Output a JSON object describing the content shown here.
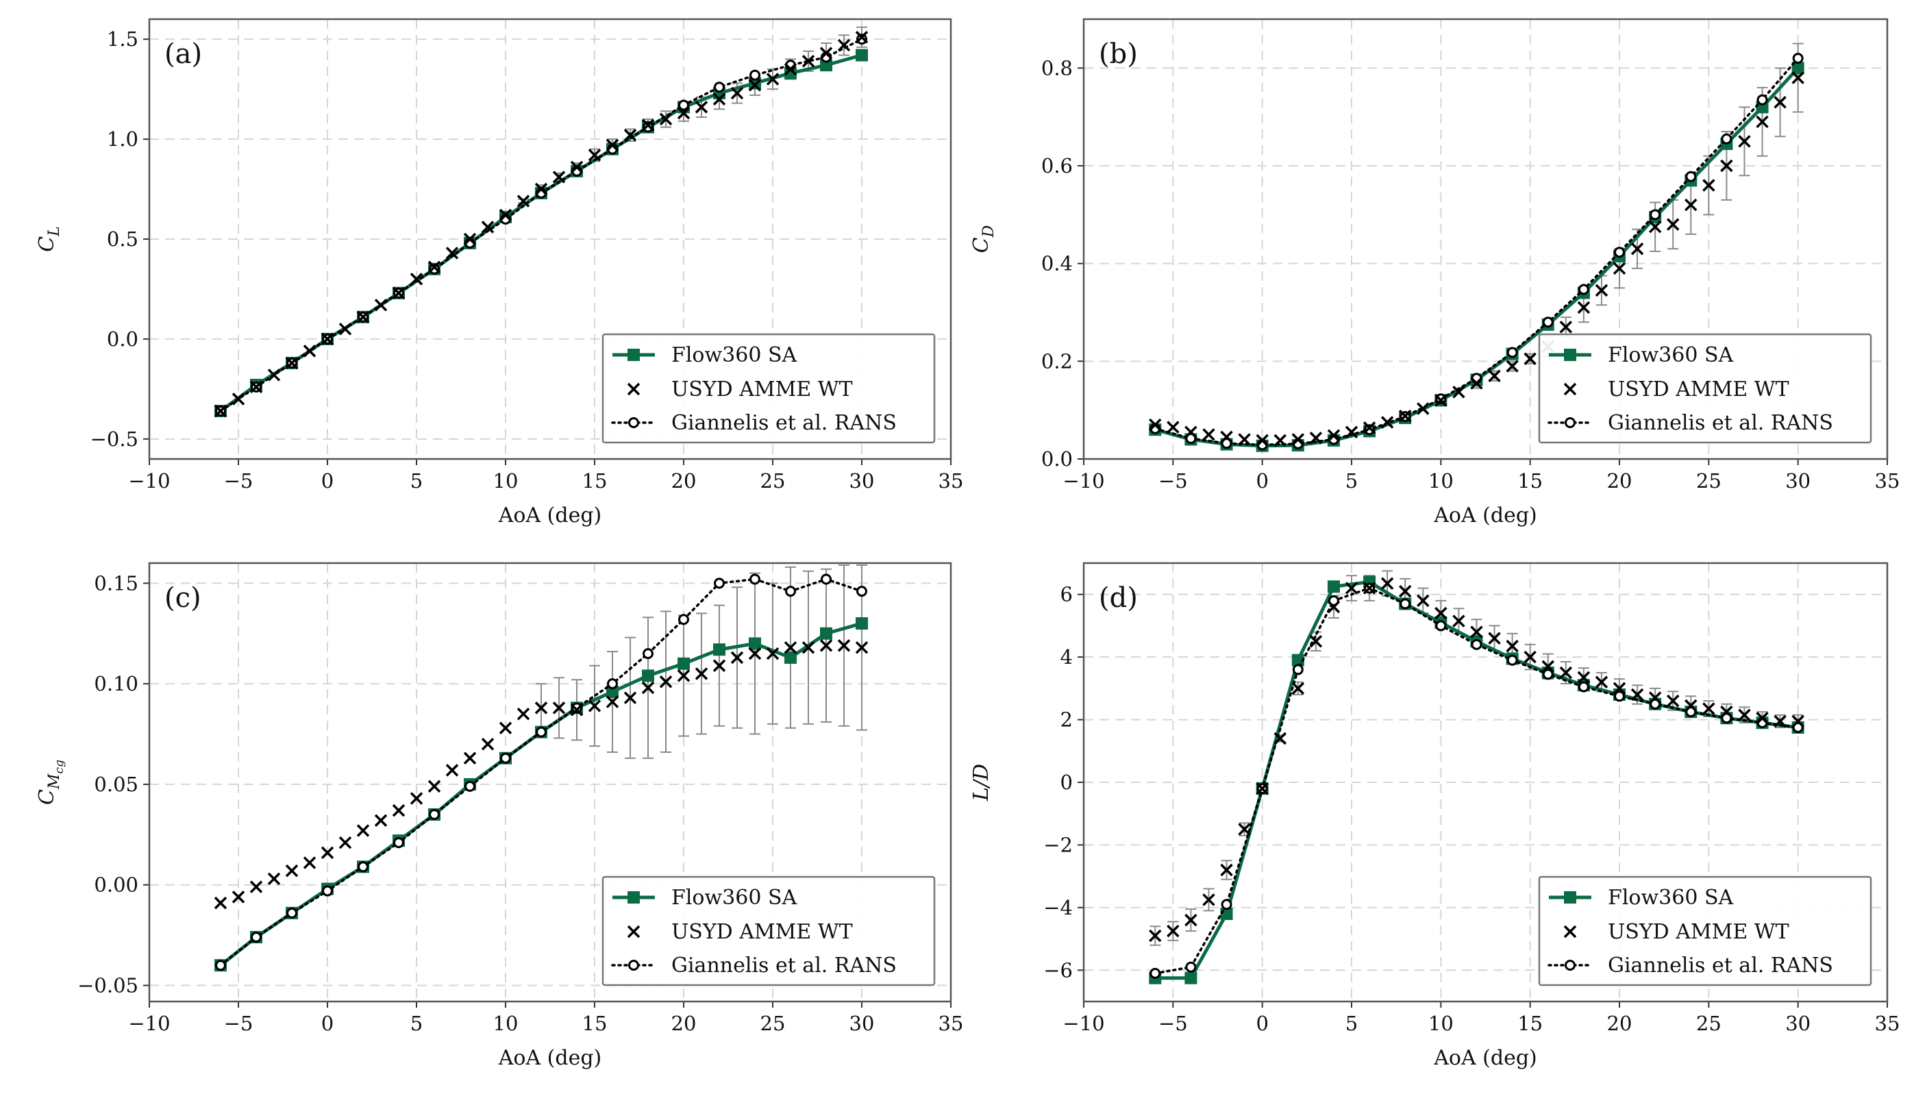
{
  "colors": {
    "flow360": "#0b6b45",
    "usyd": "#000000",
    "rans": "#000000",
    "errorbar": "#8a8a8a",
    "grid": "#d6d6d6"
  },
  "legend": [
    "Flow360 SA",
    "USYD AMME WT",
    "Giannelis et al. RANS"
  ],
  "chart_data": [
    {
      "type": "line",
      "panel_label": "(a)",
      "xlabel": "AoA (deg)",
      "ylabel": "C_L",
      "ylabel_parts": [
        "C",
        "L"
      ],
      "xlim": [
        -10,
        35
      ],
      "ylim": [
        -0.6,
        1.6
      ],
      "xticks": [
        -10,
        -5,
        0,
        5,
        10,
        15,
        20,
        25,
        30,
        35
      ],
      "xtick_labels": [
        "−10",
        "−5",
        "0",
        "5",
        "10",
        "15",
        "20",
        "25",
        "30",
        "35"
      ],
      "yticks": [
        -0.5,
        0.0,
        0.5,
        1.0,
        1.5
      ],
      "ytick_labels": [
        "−0.5",
        "0.0",
        "0.5",
        "1.0",
        "1.5"
      ],
      "legend_position": "bottom-right",
      "series": [
        {
          "name": "Flow360 SA",
          "marker": "square",
          "line": "solid",
          "x": [
            -6,
            -4,
            -2,
            0,
            2,
            4,
            6,
            8,
            10,
            12,
            14,
            16,
            18,
            20,
            22,
            24,
            26,
            28,
            30
          ],
          "y": [
            -0.36,
            -0.23,
            -0.12,
            0.0,
            0.11,
            0.23,
            0.35,
            0.48,
            0.61,
            0.73,
            0.84,
            0.95,
            1.06,
            1.16,
            1.23,
            1.28,
            1.33,
            1.37,
            1.42
          ]
        },
        {
          "name": "USYD AMME WT",
          "marker": "x",
          "line": "none",
          "x": [
            -6,
            -5,
            -4,
            -3,
            -2,
            -1,
            0,
            1,
            2,
            3,
            4,
            5,
            6,
            7,
            8,
            9,
            10,
            11,
            12,
            13,
            14,
            15,
            16,
            17,
            18,
            19,
            20,
            21,
            22,
            23,
            24,
            25,
            26,
            27,
            28,
            29,
            30
          ],
          "y": [
            -0.36,
            -0.3,
            -0.24,
            -0.18,
            -0.12,
            -0.06,
            0.0,
            0.05,
            0.11,
            0.17,
            0.23,
            0.3,
            0.36,
            0.43,
            0.5,
            0.56,
            0.62,
            0.69,
            0.75,
            0.81,
            0.86,
            0.92,
            0.97,
            1.02,
            1.07,
            1.1,
            1.13,
            1.16,
            1.2,
            1.23,
            1.27,
            1.3,
            1.35,
            1.39,
            1.43,
            1.47,
            1.51
          ],
          "error": [
            0,
            0,
            0,
            0,
            0,
            0,
            0,
            0,
            0,
            0,
            0,
            0,
            0,
            0,
            0,
            0,
            0.01,
            0.01,
            0.02,
            0.02,
            0.02,
            0.03,
            0.03,
            0.03,
            0.03,
            0.04,
            0.04,
            0.05,
            0.05,
            0.05,
            0.05,
            0.05,
            0.05,
            0.05,
            0.05,
            0.05,
            0.05
          ]
        },
        {
          "name": "Giannelis et al. RANS",
          "marker": "circle",
          "line": "dotted",
          "x": [
            -6,
            -4,
            -2,
            0,
            2,
            4,
            6,
            8,
            10,
            12,
            14,
            16,
            18,
            20,
            22,
            24,
            26,
            28,
            30
          ],
          "y": [
            -0.36,
            -0.24,
            -0.12,
            0.0,
            0.11,
            0.23,
            0.35,
            0.48,
            0.6,
            0.73,
            0.84,
            0.95,
            1.06,
            1.17,
            1.26,
            1.32,
            1.37,
            1.41,
            1.5
          ]
        }
      ]
    },
    {
      "type": "line",
      "panel_label": "(b)",
      "xlabel": "AoA (deg)",
      "ylabel": "C_D",
      "ylabel_parts": [
        "C",
        "D"
      ],
      "xlim": [
        -10,
        35
      ],
      "ylim": [
        0.0,
        0.9
      ],
      "xticks": [
        -10,
        -5,
        0,
        5,
        10,
        15,
        20,
        25,
        30,
        35
      ],
      "xtick_labels": [
        "−10",
        "−5",
        "0",
        "5",
        "10",
        "15",
        "20",
        "25",
        "30",
        "35"
      ],
      "yticks": [
        0.0,
        0.2,
        0.4,
        0.6,
        0.8
      ],
      "ytick_labels": [
        "0.0",
        "0.2",
        "0.4",
        "0.6",
        "0.8"
      ],
      "legend_position": "bottom-right",
      "series": [
        {
          "name": "Flow360 SA",
          "marker": "square",
          "line": "solid",
          "x": [
            -6,
            -4,
            -2,
            0,
            2,
            4,
            6,
            8,
            10,
            12,
            14,
            16,
            18,
            20,
            22,
            24,
            26,
            28,
            30
          ],
          "y": [
            0.06,
            0.04,
            0.03,
            0.027,
            0.028,
            0.038,
            0.057,
            0.084,
            0.12,
            0.162,
            0.215,
            0.275,
            0.34,
            0.415,
            0.495,
            0.57,
            0.645,
            0.72,
            0.8
          ]
        },
        {
          "name": "USYD AMME WT",
          "marker": "x",
          "line": "none",
          "x": [
            -6,
            -5,
            -4,
            -3,
            -2,
            -1,
            0,
            1,
            2,
            3,
            4,
            5,
            6,
            7,
            8,
            9,
            10,
            11,
            12,
            13,
            14,
            15,
            16,
            17,
            18,
            19,
            20,
            21,
            22,
            23,
            24,
            25,
            26,
            27,
            28,
            29,
            30
          ],
          "y": [
            0.07,
            0.065,
            0.055,
            0.05,
            0.045,
            0.04,
            0.038,
            0.038,
            0.04,
            0.043,
            0.048,
            0.055,
            0.064,
            0.075,
            0.088,
            0.103,
            0.12,
            0.137,
            0.155,
            0.17,
            0.19,
            0.205,
            0.23,
            0.27,
            0.31,
            0.345,
            0.39,
            0.43,
            0.475,
            0.48,
            0.52,
            0.56,
            0.6,
            0.65,
            0.69,
            0.73,
            0.78
          ],
          "error": [
            0,
            0,
            0,
            0,
            0,
            0,
            0,
            0,
            0,
            0,
            0,
            0,
            0,
            0,
            0,
            0,
            0,
            0,
            0.01,
            0.01,
            0.01,
            0.01,
            0.02,
            0.02,
            0.03,
            0.03,
            0.04,
            0.04,
            0.05,
            0.05,
            0.06,
            0.06,
            0.07,
            0.07,
            0.07,
            0.07,
            0.07
          ]
        },
        {
          "name": "Giannelis et al. RANS",
          "marker": "circle",
          "line": "dotted",
          "x": [
            -6,
            -4,
            -2,
            0,
            2,
            4,
            6,
            8,
            10,
            12,
            14,
            16,
            18,
            20,
            22,
            24,
            26,
            28,
            30
          ],
          "y": [
            0.062,
            0.042,
            0.032,
            0.029,
            0.031,
            0.04,
            0.06,
            0.087,
            0.123,
            0.165,
            0.218,
            0.28,
            0.347,
            0.423,
            0.5,
            0.578,
            0.655,
            0.735,
            0.82
          ]
        }
      ]
    },
    {
      "type": "line",
      "panel_label": "(c)",
      "xlabel": "AoA (deg)",
      "ylabel": "C_Mcg",
      "ylabel_parts": [
        "C",
        "M",
        "cg"
      ],
      "xlim": [
        -10,
        35
      ],
      "ylim": [
        -0.058,
        0.16
      ],
      "xticks": [
        -10,
        -5,
        0,
        5,
        10,
        15,
        20,
        25,
        30,
        35
      ],
      "xtick_labels": [
        "−10",
        "−5",
        "0",
        "5",
        "10",
        "15",
        "20",
        "25",
        "30",
        "35"
      ],
      "yticks": [
        -0.05,
        0.0,
        0.05,
        0.1,
        0.15
      ],
      "ytick_labels": [
        "−0.05",
        "0.00",
        "0.05",
        "0.10",
        "0.15"
      ],
      "legend_position": "bottom-right",
      "series": [
        {
          "name": "Flow360 SA",
          "marker": "square",
          "line": "solid",
          "x": [
            -6,
            -4,
            -2,
            0,
            2,
            4,
            6,
            8,
            10,
            12,
            14,
            16,
            18,
            20,
            22,
            24,
            26,
            28,
            30
          ],
          "y": [
            -0.04,
            -0.026,
            -0.014,
            -0.002,
            0.009,
            0.022,
            0.035,
            0.05,
            0.063,
            0.076,
            0.088,
            0.096,
            0.104,
            0.11,
            0.117,
            0.12,
            0.113,
            0.125,
            0.13
          ]
        },
        {
          "name": "USYD AMME WT",
          "marker": "x",
          "line": "none",
          "x": [
            -6,
            -5,
            -4,
            -3,
            -2,
            -1,
            0,
            1,
            2,
            3,
            4,
            5,
            6,
            7,
            8,
            9,
            10,
            11,
            12,
            13,
            14,
            15,
            16,
            17,
            18,
            19,
            20,
            21,
            22,
            23,
            24,
            25,
            26,
            27,
            28,
            29,
            30
          ],
          "y": [
            -0.009,
            -0.006,
            -0.001,
            0.003,
            0.007,
            0.011,
            0.016,
            0.021,
            0.027,
            0.032,
            0.037,
            0.043,
            0.049,
            0.057,
            0.063,
            0.07,
            0.078,
            0.085,
            0.088,
            0.088,
            0.087,
            0.089,
            0.091,
            0.093,
            0.098,
            0.101,
            0.104,
            0.105,
            0.109,
            0.113,
            0.115,
            0.115,
            0.118,
            0.118,
            0.119,
            0.119,
            0.118
          ],
          "error": [
            0,
            0,
            0,
            0,
            0,
            0,
            0,
            0,
            0,
            0,
            0,
            0,
            0,
            0,
            0,
            0,
            0,
            0,
            0.012,
            0.015,
            0.015,
            0.02,
            0.025,
            0.03,
            0.035,
            0.035,
            0.03,
            0.03,
            0.03,
            0.035,
            0.04,
            0.035,
            0.04,
            0.038,
            0.038,
            0.04,
            0.041
          ]
        },
        {
          "name": "Giannelis et al. RANS",
          "marker": "circle",
          "line": "dotted",
          "x": [
            -6,
            -4,
            -2,
            0,
            2,
            4,
            6,
            8,
            10,
            12,
            14,
            16,
            18,
            20,
            22,
            24,
            26,
            28,
            30
          ],
          "y": [
            -0.04,
            -0.026,
            -0.014,
            -0.003,
            0.009,
            0.021,
            0.035,
            0.049,
            0.063,
            0.076,
            0.088,
            0.1,
            0.115,
            0.132,
            0.15,
            0.152,
            0.146,
            0.152,
            0.146
          ]
        }
      ]
    },
    {
      "type": "line",
      "panel_label": "(d)",
      "xlabel": "AoA (deg)",
      "ylabel": "L/D",
      "ylabel_parts": [
        "L/D"
      ],
      "xlim": [
        -10,
        35
      ],
      "ylim": [
        -7,
        7
      ],
      "xticks": [
        -10,
        -5,
        0,
        5,
        10,
        15,
        20,
        25,
        30,
        35
      ],
      "xtick_labels": [
        "−10",
        "−5",
        "0",
        "5",
        "10",
        "15",
        "20",
        "25",
        "30",
        "35"
      ],
      "yticks": [
        -6,
        -4,
        -2,
        0,
        2,
        4,
        6
      ],
      "ytick_labels": [
        "−6",
        "−4",
        "−2",
        "0",
        "2",
        "4",
        "6"
      ],
      "legend_position": "bottom-right",
      "series": [
        {
          "name": "Flow360 SA",
          "marker": "square",
          "line": "solid",
          "x": [
            -6,
            -4,
            -2,
            0,
            2,
            4,
            6,
            8,
            10,
            12,
            14,
            16,
            18,
            20,
            22,
            24,
            26,
            28,
            30
          ],
          "y": [
            -6.25,
            -6.25,
            -4.2,
            -0.2,
            3.9,
            6.25,
            6.4,
            5.7,
            5.1,
            4.5,
            3.95,
            3.5,
            3.1,
            2.8,
            2.5,
            2.25,
            2.05,
            1.9,
            1.75
          ]
        },
        {
          "name": "USYD AMME WT",
          "marker": "x",
          "line": "none",
          "x": [
            -6,
            -5,
            -4,
            -3,
            -2,
            -1,
            0,
            1,
            2,
            3,
            4,
            5,
            6,
            7,
            8,
            9,
            10,
            11,
            12,
            13,
            14,
            15,
            16,
            17,
            18,
            19,
            20,
            21,
            22,
            23,
            24,
            25,
            26,
            27,
            28,
            29,
            30
          ],
          "y": [
            -4.9,
            -4.75,
            -4.4,
            -3.75,
            -2.8,
            -1.5,
            -0.2,
            1.4,
            3.0,
            4.5,
            5.6,
            6.2,
            6.2,
            6.35,
            6.1,
            5.8,
            5.4,
            5.15,
            4.8,
            4.6,
            4.35,
            4.0,
            3.7,
            3.5,
            3.35,
            3.2,
            3.0,
            2.8,
            2.7,
            2.6,
            2.45,
            2.35,
            2.25,
            2.15,
            2.05,
            1.95,
            1.95
          ],
          "error": [
            0.3,
            0.3,
            0.35,
            0.35,
            0.3,
            0.2,
            0.1,
            0.1,
            0.2,
            0.3,
            0.35,
            0.4,
            0.4,
            0.4,
            0.4,
            0.4,
            0.4,
            0.4,
            0.4,
            0.4,
            0.4,
            0.4,
            0.4,
            0.35,
            0.3,
            0.3,
            0.3,
            0.3,
            0.3,
            0.3,
            0.3,
            0.25,
            0.25,
            0.25,
            0.2,
            0.2,
            0.2
          ]
        },
        {
          "name": "Giannelis et al. RANS",
          "marker": "circle",
          "line": "dotted",
          "x": [
            -6,
            -4,
            -2,
            0,
            2,
            4,
            6,
            8,
            10,
            12,
            14,
            16,
            18,
            20,
            22,
            24,
            26,
            28,
            30
          ],
          "y": [
            -6.1,
            -5.9,
            -3.9,
            -0.2,
            3.6,
            5.8,
            6.2,
            5.7,
            5.0,
            4.4,
            3.9,
            3.45,
            3.05,
            2.75,
            2.5,
            2.25,
            2.05,
            1.9,
            1.75
          ]
        }
      ]
    }
  ]
}
